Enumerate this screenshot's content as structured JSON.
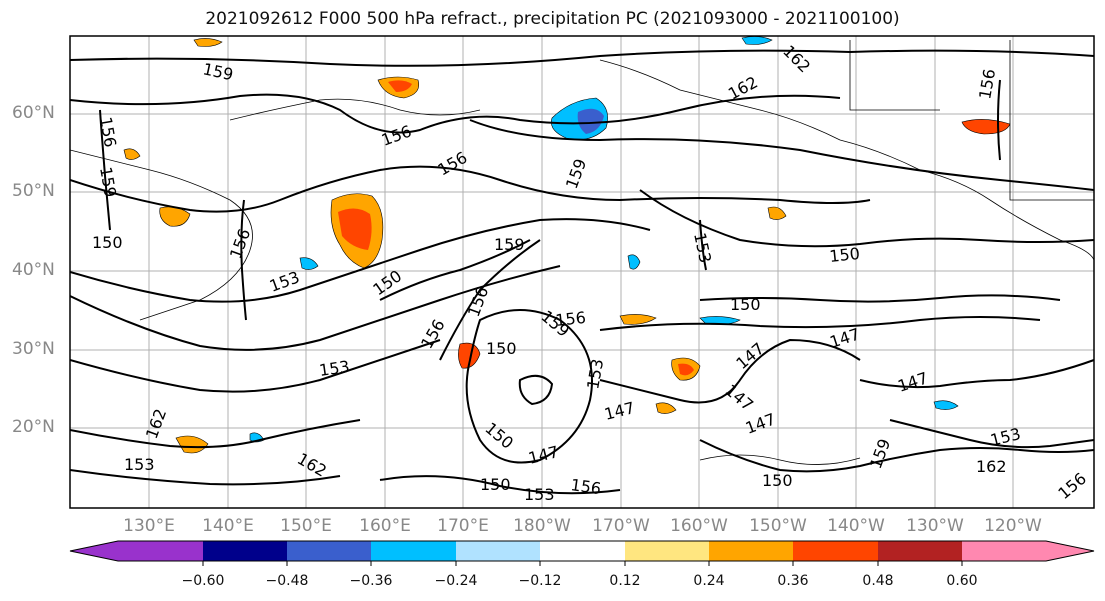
{
  "title": "2021092612 F000 500 hPa refract., precipitation PC (2021093000 - 2021100100)",
  "lat_labels": [
    "60°N",
    "50°N",
    "40°N",
    "30°N",
    "20°N"
  ],
  "lon_labels": [
    "130°E",
    "140°E",
    "150°E",
    "160°E",
    "170°E",
    "180°W",
    "170°W",
    "160°W",
    "150°W",
    "140°W",
    "130°W",
    "120°W"
  ],
  "contour_labels": [
    "159",
    "162",
    "156",
    "159",
    "162",
    "156",
    "156",
    "156",
    "150",
    "159",
    "156",
    "153",
    "153",
    "150",
    "159",
    "150",
    "153",
    "156",
    "150",
    "147",
    "147",
    "150",
    "147",
    "147",
    "153",
    "156",
    "153",
    "150",
    "153",
    "156",
    "162",
    "150",
    "147",
    "147",
    "153",
    "162",
    "150",
    "156",
    "147",
    "156",
    "159",
    "159",
    "162"
  ],
  "colorbar": {
    "tick_labels": [
      "−0.60",
      "−0.48",
      "−0.36",
      "−0.24",
      "−0.12",
      "0.12",
      "0.24",
      "0.36",
      "0.48",
      "0.60"
    ],
    "colors": [
      "#9932cc",
      "#00008b",
      "#3a5fcd",
      "#00bfff",
      "#b0e2ff",
      "#ffffff",
      "#ffe680",
      "#ffa500",
      "#ff4500",
      "#b22222",
      "#ff88b0"
    ]
  },
  "colors": {
    "gridline": "#b0b0b0",
    "contour": "#000000",
    "axis_label": "#888888"
  }
}
